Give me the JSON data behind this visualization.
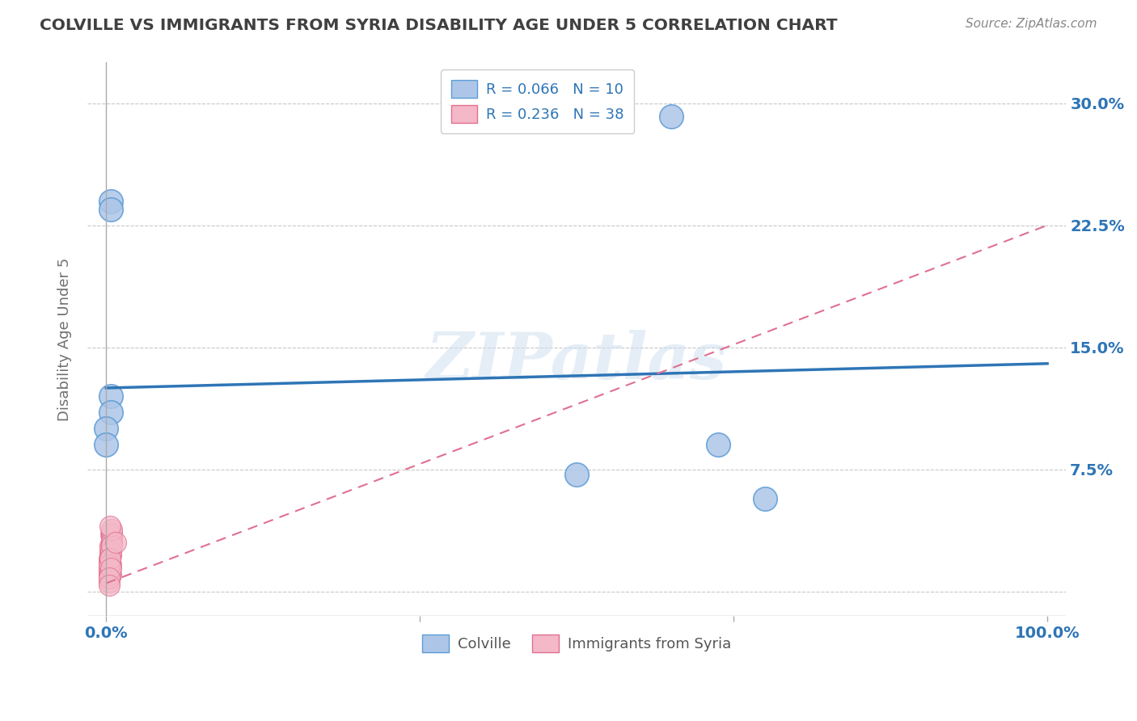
{
  "title": "COLVILLE VS IMMIGRANTS FROM SYRIA DISABILITY AGE UNDER 5 CORRELATION CHART",
  "source": "Source: ZipAtlas.com",
  "ylabel": "Disability Age Under 5",
  "legend_label1": "Colville",
  "legend_label2": "Immigrants from Syria",
  "legend_R1": "R = 0.066",
  "legend_N1": "N = 10",
  "legend_R2": "R = 0.236",
  "legend_N2": "N = 38",
  "colville_x": [
    0.005,
    0.005,
    0.6,
    0.005,
    0.005,
    0.65,
    0.5,
    0.7,
    0.0,
    0.0
  ],
  "colville_y": [
    0.24,
    0.235,
    0.292,
    0.12,
    0.11,
    0.09,
    0.072,
    0.057,
    0.1,
    0.09
  ],
  "syria_x": [
    0.005,
    0.004,
    0.003,
    0.006,
    0.004,
    0.005,
    0.003,
    0.004,
    0.006,
    0.004,
    0.003,
    0.005,
    0.004,
    0.006,
    0.003,
    0.004,
    0.005,
    0.003,
    0.004,
    0.006,
    0.003,
    0.005,
    0.004,
    0.003,
    0.006,
    0.004,
    0.005,
    0.003,
    0.004,
    0.006,
    0.003,
    0.004,
    0.005,
    0.006,
    0.003,
    0.004,
    0.01,
    0.003
  ],
  "syria_y": [
    0.035,
    0.028,
    0.02,
    0.03,
    0.015,
    0.025,
    0.01,
    0.018,
    0.032,
    0.022,
    0.008,
    0.016,
    0.024,
    0.034,
    0.012,
    0.02,
    0.01,
    0.018,
    0.026,
    0.036,
    0.014,
    0.022,
    0.018,
    0.006,
    0.03,
    0.02,
    0.024,
    0.012,
    0.01,
    0.028,
    0.016,
    0.02,
    0.014,
    0.038,
    0.008,
    0.04,
    0.03,
    0.004
  ],
  "colville_color": "#adc6e8",
  "colville_edge": "#5b9bd5",
  "syria_color": "#f4b8c8",
  "syria_edge": "#e07090",
  "regression_blue_color": "#2e75b6",
  "regression_pink_color": "#e07090",
  "blue_line_y0": 0.125,
  "blue_line_y1": 0.14,
  "pink_line_y0": 0.005,
  "pink_line_y1": 0.225,
  "yticks": [
    0.0,
    0.075,
    0.15,
    0.225,
    0.3
  ],
  "ytick_labels": [
    "",
    "7.5%",
    "15.0%",
    "22.5%",
    "30.0%"
  ],
  "xlim": [
    -0.02,
    1.02
  ],
  "ylim": [
    -0.015,
    0.325
  ],
  "watermark_text": "ZIPatlas",
  "background_color": "#ffffff",
  "grid_color": "#c8c8c8",
  "title_color": "#404040",
  "source_color": "#888888",
  "axis_label_color": "#2e75b6",
  "ylabel_color": "#707070"
}
